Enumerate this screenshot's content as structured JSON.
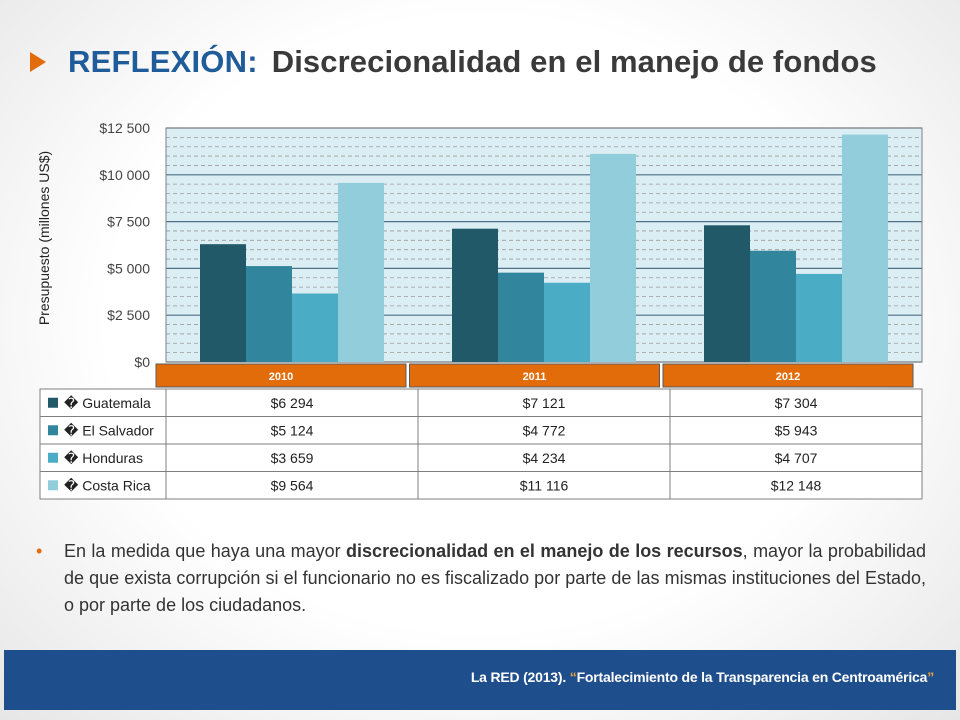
{
  "slide": {
    "title_lead": "REFLEXIÓN:",
    "title_main": "Discrecionalidad en el manejo de fondos",
    "bullet_pre": "En la medida que haya una mayor ",
    "bullet_bold": "discrecionalidad en el manejo de los recursos",
    "bullet_post": ", mayor la probabilidad de que exista corrupción si el funcionario no es fiscalizado por parte de las mismas instituciones del Estado, o por parte de los ciudadanos.",
    "footer_pre": "La RED (2013). ",
    "footer_open_quote": "“",
    "footer_source": "Fortalecimiento de la Transparencia en Centroamérica",
    "footer_close_quote": "”"
  },
  "chart_data": {
    "type": "bar",
    "title": "",
    "ylabel": "Presupuesto (millones US$)",
    "xlabel": "",
    "ylim": [
      0,
      12500
    ],
    "yticks": [
      0,
      2500,
      5000,
      7500,
      10000,
      12500
    ],
    "ytick_labels": [
      "$0",
      "$2 500",
      "$5 000",
      "$7 500",
      "$10 000",
      "$12 500"
    ],
    "categories": [
      "2010",
      "2011",
      "2012"
    ],
    "grid": true,
    "legend_placement": "data-table-below",
    "series": [
      {
        "name": "Guatemala",
        "legend_label": "� Guatemala",
        "color": "#215968",
        "values": [
          6294,
          7121,
          7304
        ],
        "labels": [
          "$6 294",
          "$7 121",
          "$7 304"
        ]
      },
      {
        "name": "El Salvador",
        "legend_label": "� El Salvador",
        "color": "#31859c",
        "values": [
          5124,
          4772,
          5943
        ],
        "labels": [
          "$5 124",
          "$4 772",
          "$5 943"
        ]
      },
      {
        "name": "Honduras",
        "legend_label": "� Honduras",
        "color": "#4bacc6",
        "values": [
          3659,
          4234,
          4707
        ],
        "labels": [
          "$3 659",
          "$4 234",
          "$4 707"
        ]
      },
      {
        "name": "Costa Rica",
        "legend_label": "� Costa Rica",
        "color": "#92cddc",
        "values": [
          9564,
          11116,
          12148
        ],
        "labels": [
          "$9 564",
          "$11 116",
          "$12 148"
        ]
      }
    ],
    "category_color": "#e36c0a",
    "category_label_color": "#ffffff"
  }
}
